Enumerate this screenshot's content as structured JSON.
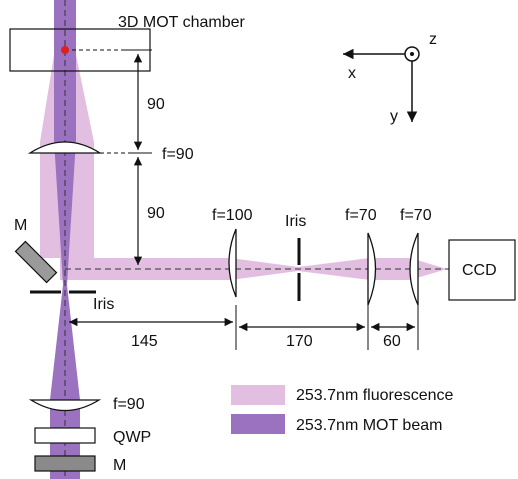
{
  "labels": {
    "chamber": "3D MOT chamber",
    "axis_x": "x",
    "axis_y": "y",
    "axis_z": "z",
    "dim_upper": "90",
    "lens1_focal": "f=90",
    "dim_lower": "90",
    "mirror_left": "M",
    "iris_left": "Iris",
    "lens_f100": "f=100",
    "iris_center": "Iris",
    "lens_f70_a": "f=70",
    "lens_f70_b": "f=70",
    "ccd": "CCD",
    "dim_145": "145",
    "dim_170": "170",
    "dim_60": "60",
    "lens_bottom_focal": "f=90",
    "qwp": "QWP",
    "mirror_bottom": "M"
  },
  "legend": [
    {
      "label": "253.7nm fluorescence",
      "color": "#e2bfe0"
    },
    {
      "label": "253.7nm MOT beam",
      "color": "#9a72c0"
    }
  ],
  "colors": {
    "fluorescence": "#e2bfe0",
    "mot_beam": "#9a72c0",
    "atom_cloud": "#e02020",
    "mirror_fill": "#9a9a9a",
    "bottom_mirror_fill": "#8a8a8a"
  }
}
